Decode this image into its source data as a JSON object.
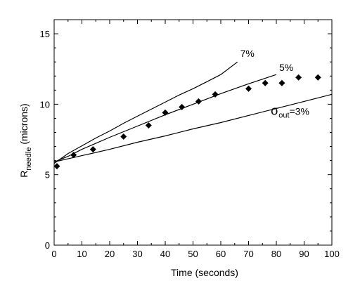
{
  "chart_data": {
    "type": "scatter",
    "xlabel": "Time (seconds)",
    "ylabel": {
      "main": "R",
      "sub": "needle",
      "rest": " (microns)"
    },
    "xlim": [
      0,
      100
    ],
    "ylim": [
      0,
      16
    ],
    "xticks": [
      "0",
      "10",
      "20",
      "30",
      "40",
      "50",
      "60",
      "70",
      "80",
      "90",
      "100"
    ],
    "yticks": [
      "0",
      "5",
      "10",
      "15"
    ],
    "grid": false,
    "series": [
      {
        "kind": "line",
        "label": "7%",
        "x": [
          0,
          5,
          10,
          15,
          20,
          25,
          30,
          35,
          40,
          45,
          50,
          55,
          60,
          66
        ],
        "y": [
          5.8,
          6.5,
          7.05,
          7.6,
          8.1,
          8.65,
          9.15,
          9.65,
          10.15,
          10.65,
          11.1,
          11.6,
          12.1,
          13.0
        ]
      },
      {
        "kind": "line",
        "label": "5%",
        "x": [
          0,
          5,
          10,
          20,
          30,
          40,
          50,
          60,
          70,
          80
        ],
        "y": [
          5.9,
          6.3,
          6.8,
          7.65,
          8.45,
          9.25,
          10.0,
          10.75,
          11.45,
          12.1
        ]
      },
      {
        "kind": "line",
        "label": {
          "sigma": "σ",
          "sub": "out",
          "rest": "=3%"
        },
        "x": [
          0,
          10,
          20,
          30,
          40,
          50,
          60,
          70,
          80,
          90,
          100
        ],
        "y": [
          5.9,
          6.35,
          6.8,
          7.3,
          7.75,
          8.25,
          8.7,
          9.2,
          9.7,
          10.2,
          10.7
        ]
      },
      {
        "kind": "markers",
        "marker": "diamond",
        "x": [
          1,
          7,
          14,
          25,
          34,
          40,
          46,
          52,
          58,
          70,
          76,
          82,
          88,
          95
        ],
        "y": [
          5.6,
          6.4,
          6.8,
          7.7,
          8.5,
          9.4,
          9.8,
          10.2,
          10.7,
          11.1,
          11.5,
          11.5,
          11.9,
          11.9
        ]
      }
    ]
  }
}
